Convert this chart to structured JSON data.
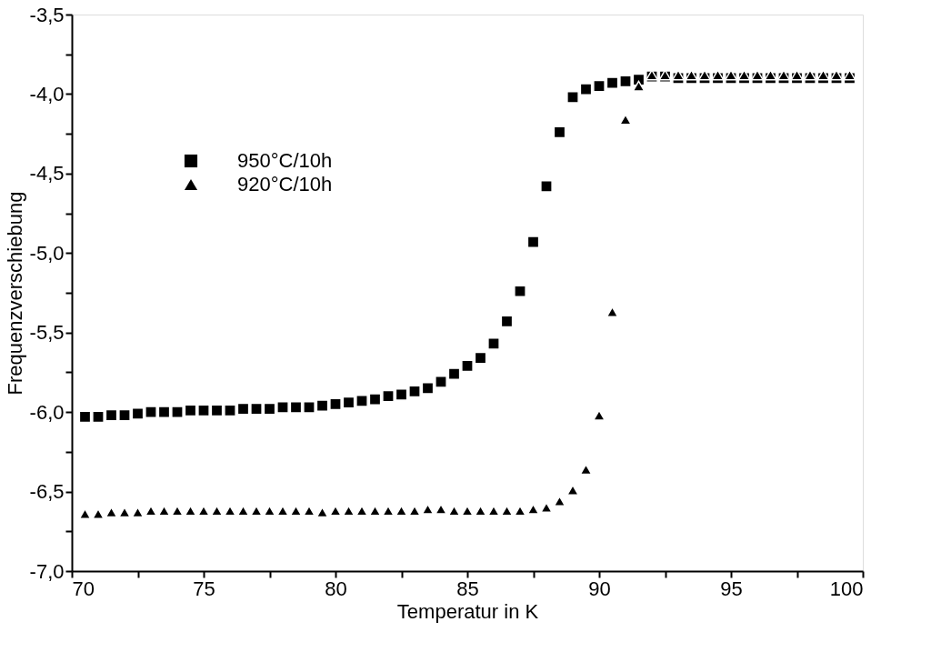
{
  "chart_data": {
    "type": "scatter",
    "xlabel": "Temperatur in K",
    "ylabel": "Frequenzverschiebung",
    "x": [
      70.5,
      71,
      71.5,
      72,
      72.5,
      73,
      73.5,
      74,
      74.5,
      75,
      75.5,
      76,
      76.5,
      77,
      77.5,
      78,
      78.5,
      79,
      79.5,
      80,
      80.5,
      81,
      81.5,
      82,
      82.5,
      83,
      83.5,
      84,
      84.5,
      85,
      85.5,
      86,
      86.5,
      87,
      87.5,
      88,
      88.5,
      89,
      89.5,
      90,
      90.5,
      91,
      91.5,
      92,
      92.5,
      93,
      93.5,
      94,
      94.5,
      95,
      95.5,
      96,
      96.5,
      97,
      97.5,
      98,
      98.5,
      99,
      99.5
    ],
    "series": [
      {
        "name": "950°C/10h",
        "color": "#000000",
        "marker": "square",
        "values": [
          -6.03,
          -6.03,
          -6.02,
          -6.02,
          -6.01,
          -6.0,
          -6.0,
          -6.0,
          -5.99,
          -5.99,
          -5.99,
          -5.99,
          -5.98,
          -5.98,
          -5.98,
          -5.97,
          -5.97,
          -5.97,
          -5.96,
          -5.95,
          -5.94,
          -5.93,
          -5.92,
          -5.9,
          -5.89,
          -5.87,
          -5.85,
          -5.81,
          -5.76,
          -5.71,
          -5.66,
          -5.57,
          -5.43,
          -5.24,
          -4.93,
          -4.58,
          -4.24,
          -4.02,
          -3.97,
          -3.95,
          -3.93,
          -3.92,
          -3.91,
          -3.89,
          -3.89,
          -3.9,
          -3.9,
          -3.9,
          -3.9,
          -3.9,
          -3.9,
          -3.9,
          -3.9,
          -3.9,
          -3.9,
          -3.9,
          -3.9,
          -3.9,
          -3.9
        ]
      },
      {
        "name": "920°C/10h",
        "color": "#000000",
        "marker": "triangle",
        "values": [
          -6.64,
          -6.64,
          -6.63,
          -6.63,
          -6.63,
          -6.62,
          -6.62,
          -6.62,
          -6.62,
          -6.62,
          -6.62,
          -6.62,
          -6.62,
          -6.62,
          -6.62,
          -6.62,
          -6.62,
          -6.62,
          -6.63,
          -6.62,
          -6.62,
          -6.62,
          -6.62,
          -6.62,
          -6.62,
          -6.62,
          -6.61,
          -6.61,
          -6.62,
          -6.62,
          -6.62,
          -6.62,
          -6.62,
          -6.62,
          -6.61,
          -6.6,
          -6.56,
          -6.49,
          -6.36,
          -6.02,
          -5.37,
          -4.16,
          -3.95,
          -3.88,
          -3.88,
          -3.88,
          -3.88,
          -3.88,
          -3.88,
          -3.88,
          -3.88,
          -3.88,
          -3.88,
          -3.88,
          -3.88,
          -3.88,
          -3.88,
          -3.88,
          -3.88
        ]
      }
    ],
    "xlim": [
      70,
      100
    ],
    "xticks": [
      70,
      {
        "value": 72.5,
        "label": null
      },
      75,
      {
        "value": 77.5,
        "label": null
      },
      80,
      {
        "value": 82.5,
        "label": null
      },
      85,
      {
        "value": 87.5,
        "label": null
      },
      90,
      {
        "value": 92.5,
        "label": null
      },
      95,
      {
        "value": 97.5,
        "label": null
      },
      100
    ],
    "ylim": [
      -7.0,
      -3.5
    ],
    "yticks": [
      {
        "value": -7.0,
        "label": "-7,0"
      },
      {
        "value": -6.75,
        "label": null
      },
      {
        "value": -6.5,
        "label": "-6,5"
      },
      {
        "value": -6.25,
        "label": null
      },
      {
        "value": -6.0,
        "label": "-6,0"
      },
      {
        "value": -5.75,
        "label": null
      },
      {
        "value": -5.5,
        "label": "-5,5"
      },
      {
        "value": -5.25,
        "label": null
      },
      {
        "value": -5.0,
        "label": "-5,0"
      },
      {
        "value": -4.75,
        "label": null
      },
      {
        "value": -4.5,
        "label": "-4,5"
      },
      {
        "value": -4.25,
        "label": null
      },
      {
        "value": -4.0,
        "label": "-4,0"
      },
      {
        "value": -3.75,
        "label": null
      },
      {
        "value": -3.5,
        "label": "-3,5"
      }
    ],
    "grid": false,
    "legend": "top left"
  }
}
